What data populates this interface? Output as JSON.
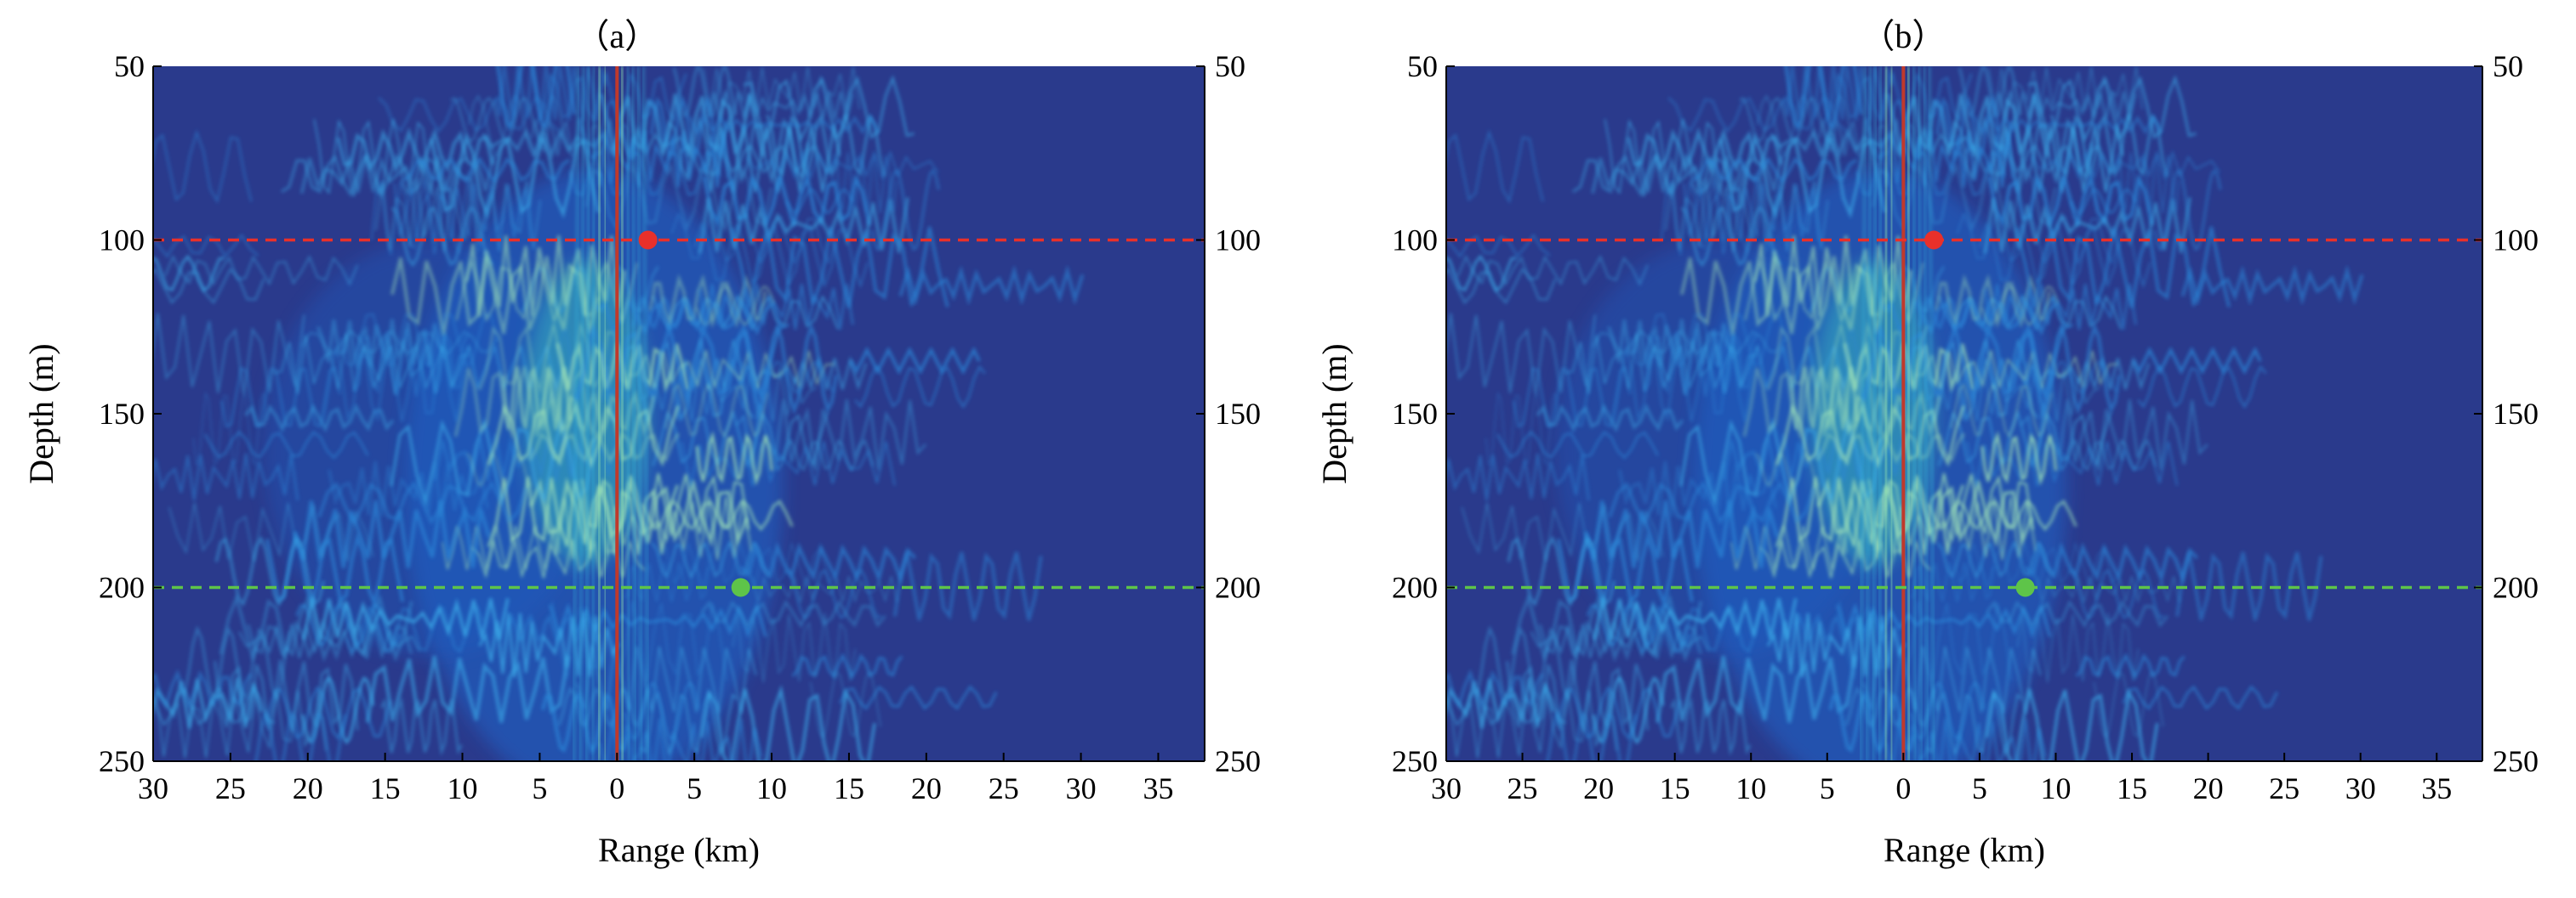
{
  "chart_data": [
    {
      "type": "heatmap",
      "title": "（a）",
      "xlabel": "Range (km)",
      "ylabel": "Depth (m)",
      "x_tick_labels": [
        "30",
        "25",
        "20",
        "15",
        "10",
        "5",
        "0",
        "5",
        "10",
        "15",
        "20",
        "25",
        "30",
        "35"
      ],
      "y_ticks": [
        50,
        100,
        150,
        200,
        250
      ],
      "y_tick_labels": [
        "50",
        "100",
        "150",
        "200",
        "250"
      ],
      "right_y_tick_labels": [
        "50",
        "100",
        "150",
        "200",
        "250"
      ],
      "xlim": [
        -30,
        38
      ],
      "ylim": [
        50,
        250
      ],
      "colormap": "parula",
      "reference_lines": [
        {
          "depth": 100,
          "color": "#e8302a",
          "style": "dashed"
        },
        {
          "depth": 200,
          "color": "#5ec449",
          "style": "dashed"
        }
      ],
      "vertical_line": {
        "range": 0,
        "color": "#c0392b"
      },
      "markers": [
        {
          "x": 2,
          "y": 100,
          "color": "#e8302a"
        },
        {
          "x": 8,
          "y": 200,
          "color": "#5ec449"
        }
      ]
    },
    {
      "type": "heatmap",
      "title": "（b）",
      "xlabel": "Range (km)",
      "ylabel": "Depth (m)",
      "x_tick_labels": [
        "30",
        "25",
        "20",
        "15",
        "10",
        "5",
        "0",
        "5",
        "10",
        "15",
        "20",
        "25",
        "30",
        "35"
      ],
      "y_ticks": [
        50,
        100,
        150,
        200,
        250
      ],
      "y_tick_labels": [
        "50",
        "100",
        "150",
        "200",
        "250"
      ],
      "right_y_tick_labels": [
        "50",
        "100",
        "150",
        "200",
        "250"
      ],
      "xlim": [
        -30,
        38
      ],
      "ylim": [
        50,
        250
      ],
      "colormap": "parula",
      "reference_lines": [
        {
          "depth": 100,
          "color": "#e8302a",
          "style": "dashed"
        },
        {
          "depth": 200,
          "color": "#5ec449",
          "style": "dashed"
        }
      ],
      "vertical_line": {
        "range": 0,
        "color": "#c0392b"
      },
      "markers": [
        {
          "x": 2,
          "y": 100,
          "color": "#e8302a"
        },
        {
          "x": 8,
          "y": 200,
          "color": "#5ec449"
        }
      ]
    }
  ],
  "colors": {
    "background_field": "#2a3a8c",
    "axis": "#000000"
  }
}
